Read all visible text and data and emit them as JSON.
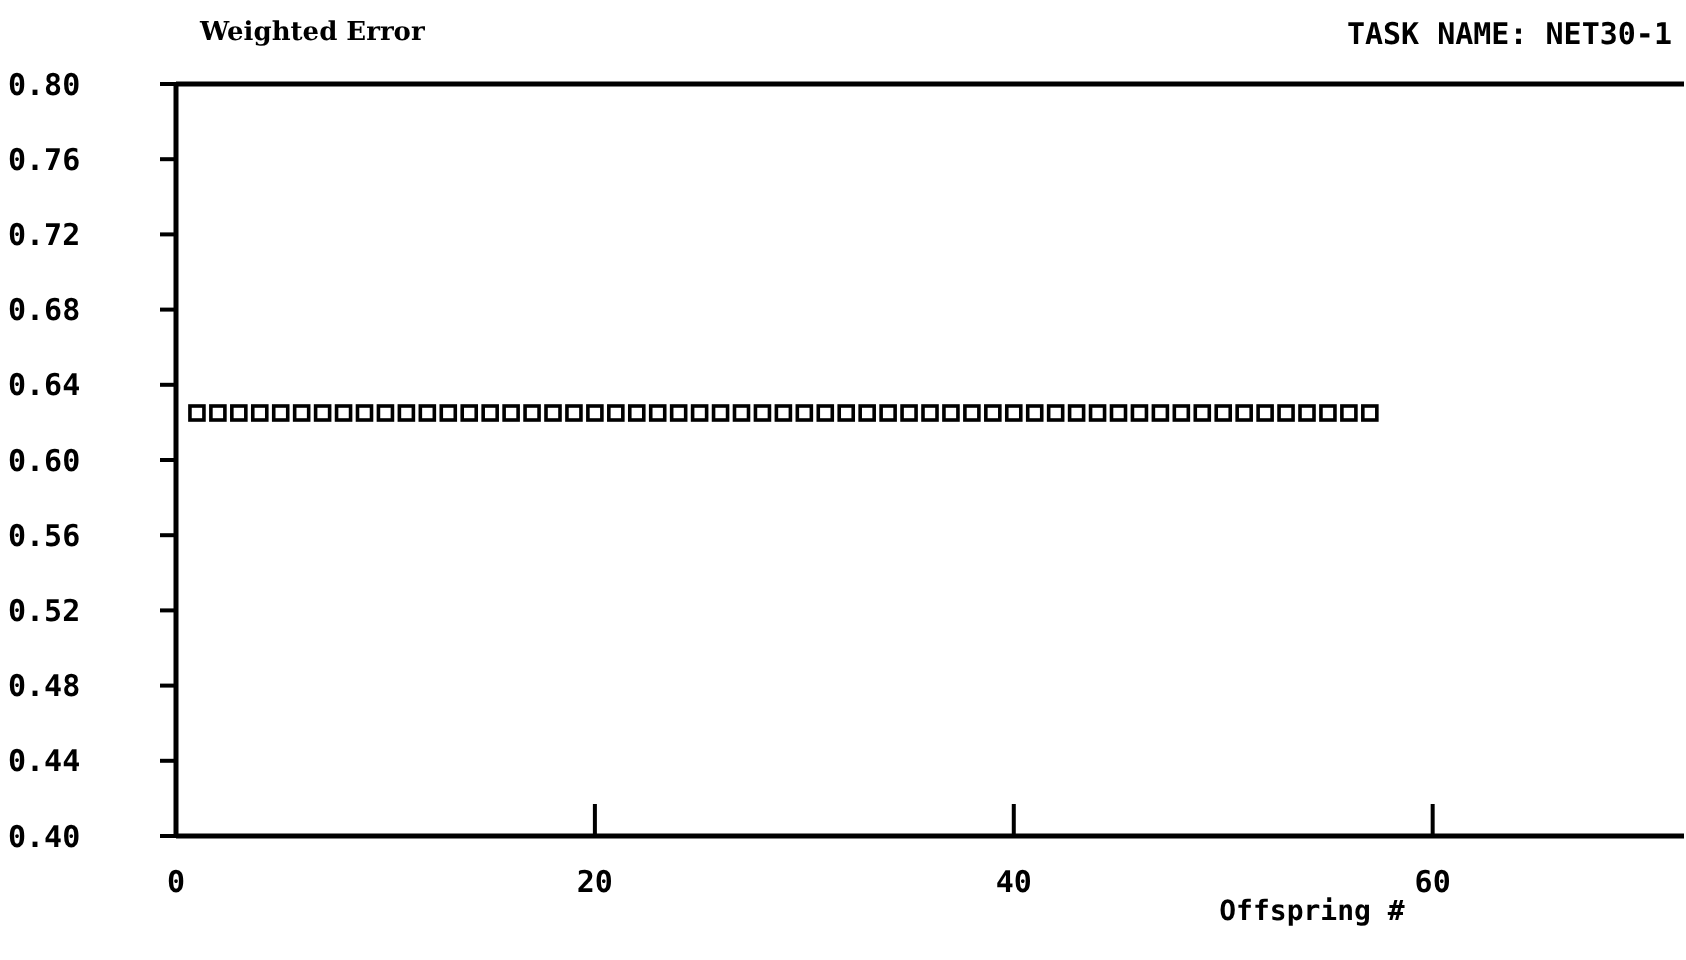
{
  "chart_data": {
    "type": "scatter",
    "title": "TASK NAME: NET30-1",
    "ylabel": "Weighted Error",
    "xlabel": "Offspring #",
    "x": [
      1,
      2,
      3,
      4,
      5,
      6,
      7,
      8,
      9,
      10,
      11,
      12,
      13,
      14,
      15,
      16,
      17,
      18,
      19,
      20,
      21,
      22,
      23,
      24,
      25,
      26,
      27,
      28,
      29,
      30,
      31,
      32,
      33,
      34,
      35,
      36,
      37,
      38,
      39,
      40,
      41,
      42,
      43,
      44,
      45,
      46,
      47,
      48,
      49,
      50,
      51,
      52,
      53,
      54,
      55,
      56,
      57
    ],
    "series": [
      {
        "color": "#000000",
        "values": [
          0.625,
          0.625,
          0.625,
          0.625,
          0.625,
          0.625,
          0.625,
          0.625,
          0.625,
          0.625,
          0.625,
          0.625,
          0.625,
          0.625,
          0.625,
          0.625,
          0.625,
          0.625,
          0.625,
          0.625,
          0.625,
          0.625,
          0.625,
          0.625,
          0.625,
          0.625,
          0.625,
          0.625,
          0.625,
          0.625,
          0.625,
          0.625,
          0.625,
          0.625,
          0.625,
          0.625,
          0.625,
          0.625,
          0.625,
          0.625,
          0.625,
          0.625,
          0.625,
          0.625,
          0.625,
          0.625,
          0.625,
          0.625,
          0.625,
          0.625,
          0.625,
          0.625,
          0.625,
          0.625,
          0.625,
          0.625,
          0.625
        ]
      }
    ],
    "marker": "square",
    "xlim": [
      0,
      72
    ],
    "xticks": [
      0,
      20,
      40,
      60
    ],
    "ylim": [
      0.4,
      0.8
    ],
    "yticks": [
      {
        "value": 0.4,
        "label": "0.40"
      },
      {
        "value": 0.44,
        "label": "0.44"
      },
      {
        "value": 0.48,
        "label": "0.48"
      },
      {
        "value": 0.52,
        "label": "0.52"
      },
      {
        "value": 0.56,
        "label": "0.56"
      },
      {
        "value": 0.6,
        "label": "0.60"
      },
      {
        "value": 0.64,
        "label": "0.64"
      },
      {
        "value": 0.68,
        "label": "0.68"
      },
      {
        "value": 0.72,
        "label": "0.72"
      },
      {
        "value": 0.76,
        "label": "0.76"
      },
      {
        "value": 0.8,
        "label": "0.80"
      }
    ]
  }
}
